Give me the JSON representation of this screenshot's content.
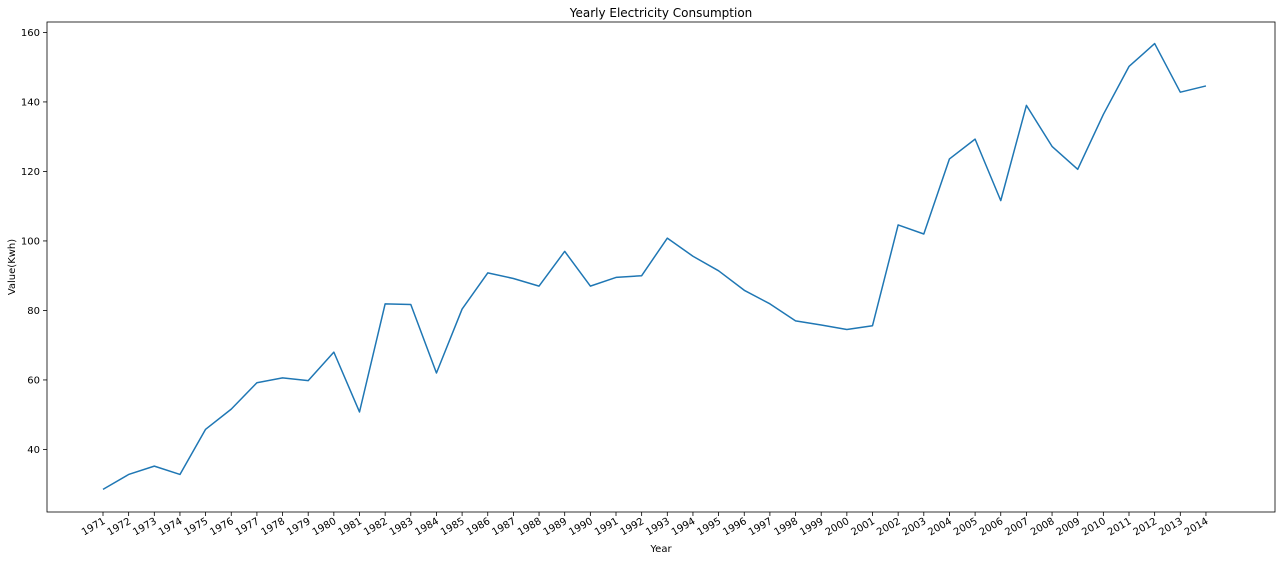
{
  "chart_data": {
    "type": "line",
    "title": "Yearly Electricity Consumption",
    "xlabel": "Year",
    "ylabel": "Value(Kwh)",
    "categories": [
      "1971",
      "1972",
      "1973",
      "1974",
      "1975",
      "1976",
      "1977",
      "1978",
      "1979",
      "1980",
      "1981",
      "1982",
      "1983",
      "1984",
      "1985",
      "1986",
      "1987",
      "1988",
      "1989",
      "1990",
      "1991",
      "1992",
      "1993",
      "1994",
      "1995",
      "1996",
      "1997",
      "1998",
      "1999",
      "2000",
      "2001",
      "2002",
      "2003",
      "2004",
      "2005",
      "2006",
      "2007",
      "2008",
      "2009",
      "2010",
      "2011",
      "2012",
      "2013",
      "2014"
    ],
    "series": [
      {
        "values": [
          28.5,
          32.8,
          35.2,
          32.8,
          45.8,
          51.6,
          59.2,
          60.6,
          59.8,
          68.0,
          50.8,
          81.9,
          81.7,
          62.0,
          80.4,
          90.8,
          89.2,
          87.0,
          97.0,
          87.0,
          89.5,
          90.0,
          100.8,
          95.6,
          91.4,
          85.8,
          81.9,
          77.0,
          75.8,
          74.5,
          75.6,
          104.6,
          102.0,
          123.6,
          129.3,
          111.6,
          139.0,
          127.2,
          120.6,
          136.4,
          150.2,
          156.8,
          142.8,
          144.6
        ]
      }
    ],
    "yticks": [
      40,
      60,
      80,
      100,
      120,
      140,
      160
    ],
    "ylim": [
      22.0,
      163.0
    ],
    "grid": false,
    "line_color": "#1f77b4"
  }
}
